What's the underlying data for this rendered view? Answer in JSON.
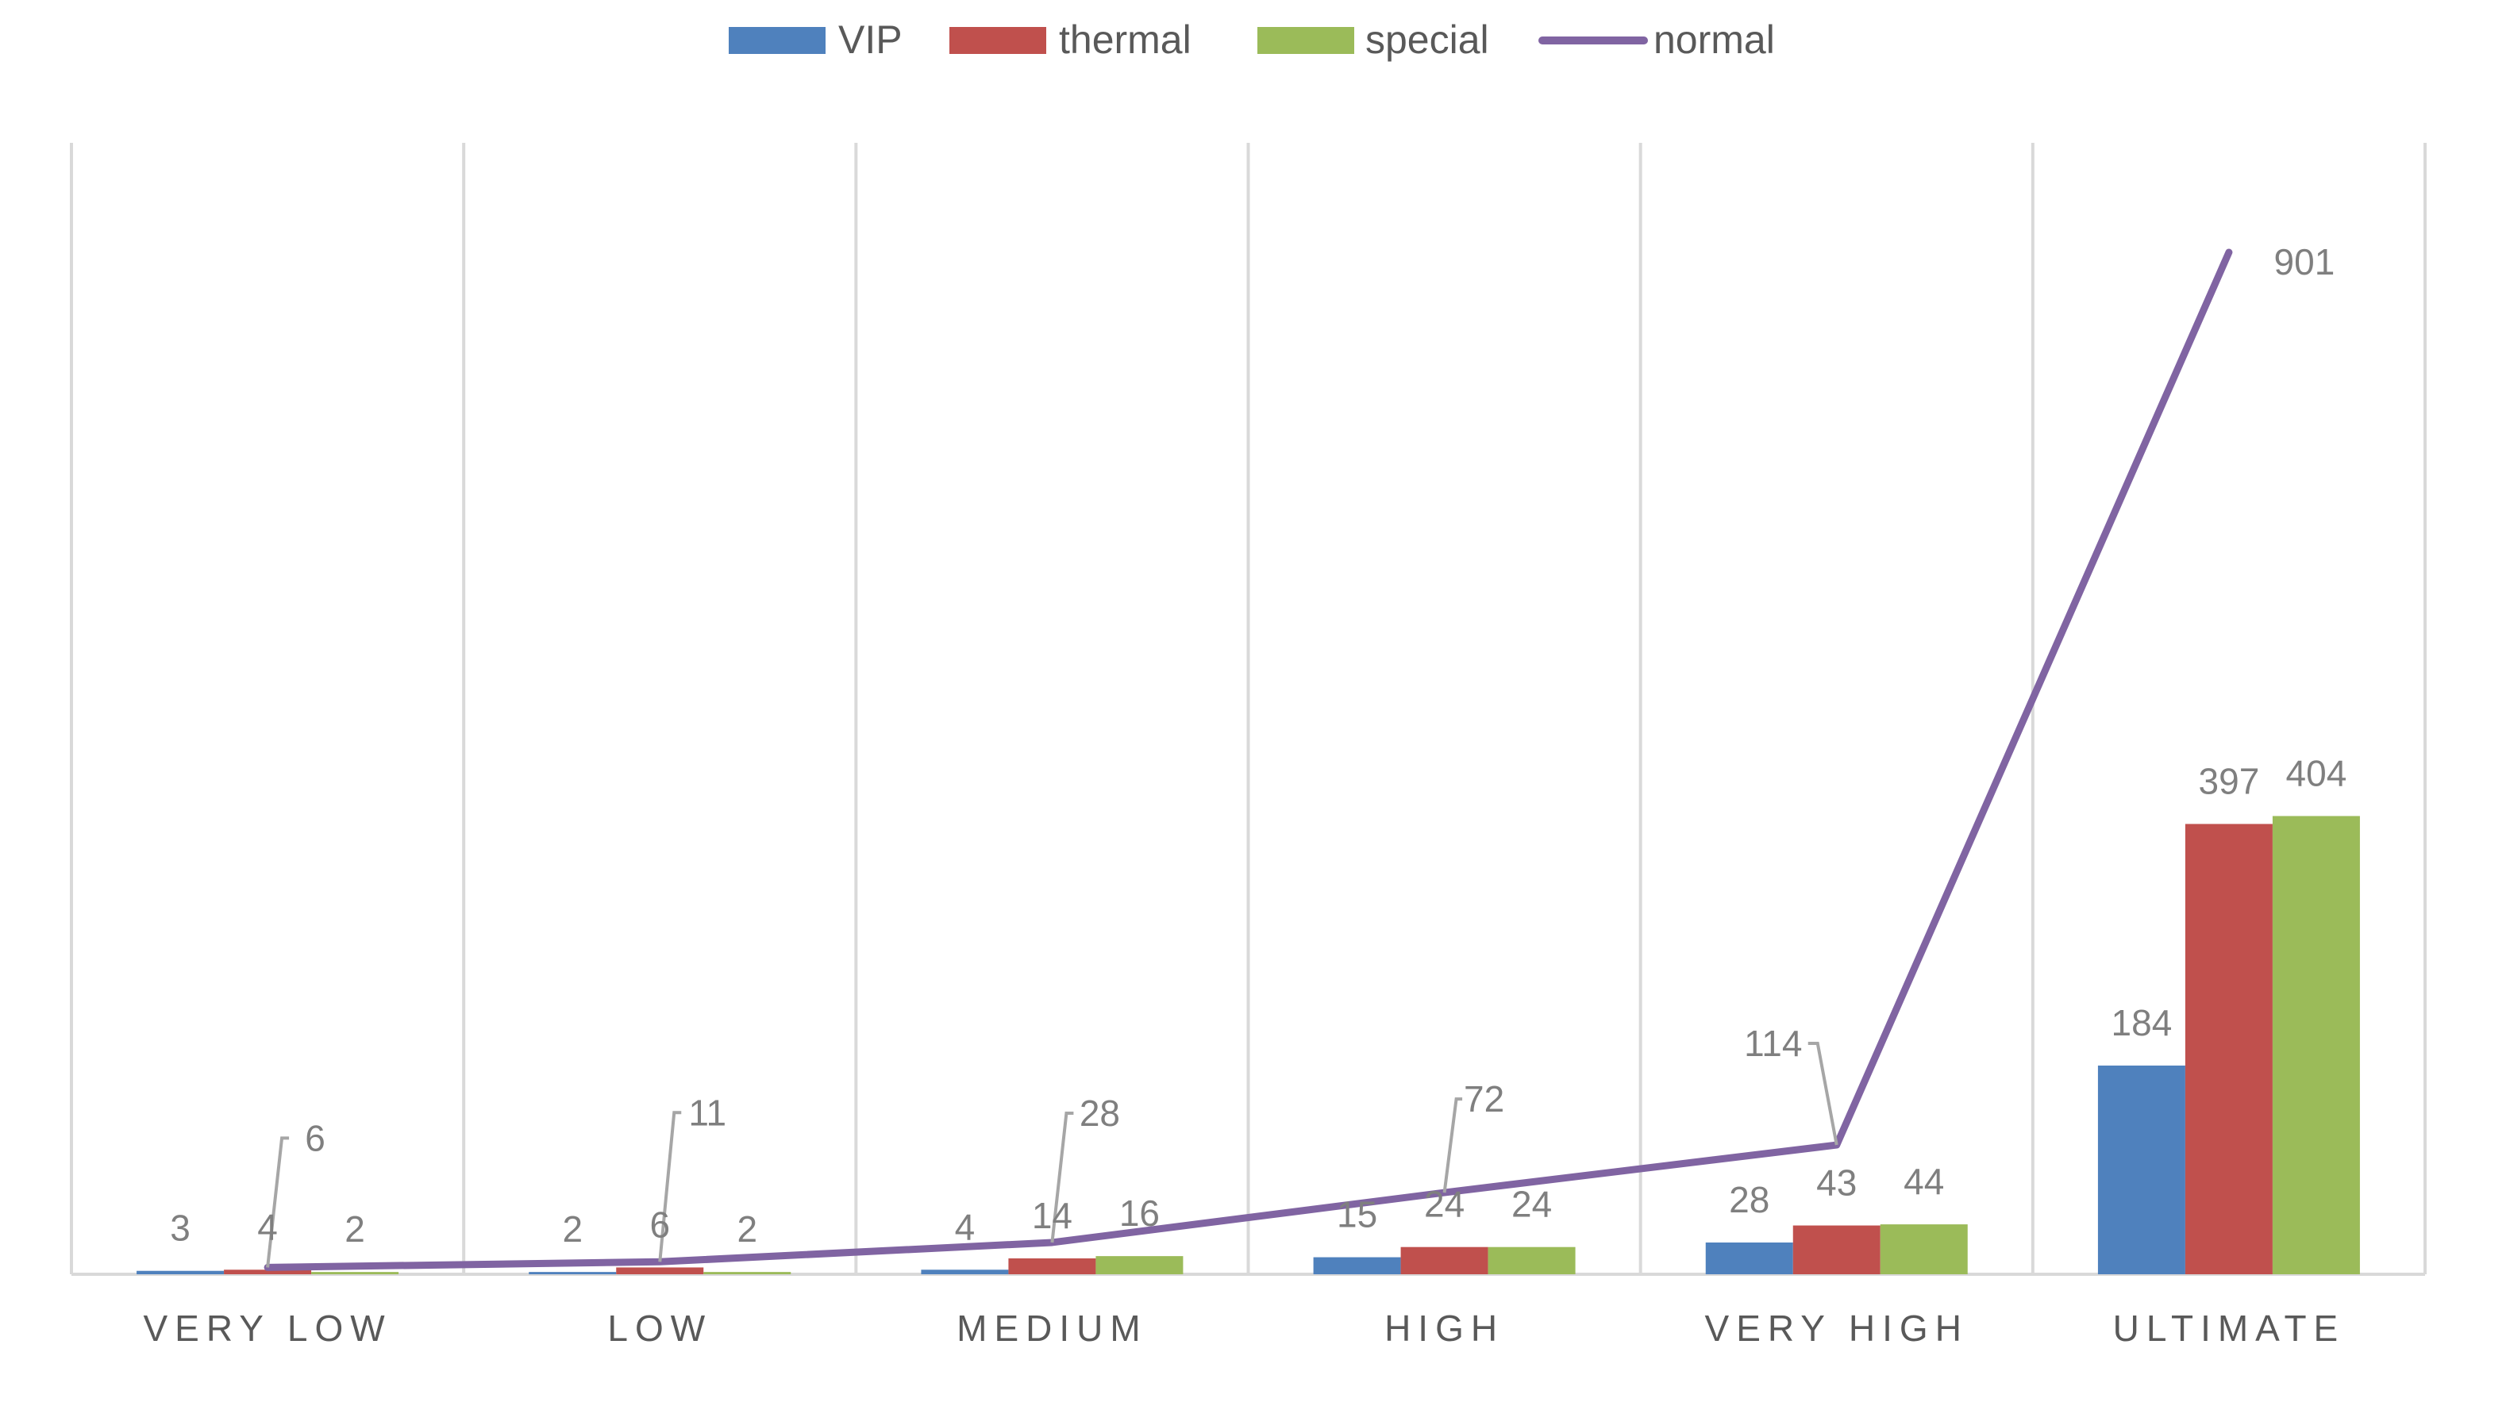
{
  "chart_data": {
    "type": "bar",
    "categories": [
      "VERY LOW",
      "LOW",
      "MEDIUM",
      "HIGH",
      "VERY HIGH",
      "ULTIMATE"
    ],
    "series": [
      {
        "name": "VIP",
        "type": "bar",
        "color": "#4f81bd",
        "values": [
          3,
          2,
          4,
          15,
          28,
          184
        ]
      },
      {
        "name": "thermal",
        "type": "bar",
        "color": "#c0504d",
        "values": [
          4,
          6,
          14,
          24,
          43,
          397
        ]
      },
      {
        "name": "special",
        "type": "bar",
        "color": "#9bbb59",
        "values": [
          2,
          2,
          16,
          24,
          44,
          404
        ]
      },
      {
        "name": "normal",
        "type": "line",
        "color": "#8064a2",
        "values": [
          6,
          11,
          28,
          72,
          114,
          901
        ]
      }
    ],
    "ylim": [
      0,
      1000
    ],
    "grid": "vertical category separators",
    "legend": "top-center",
    "data_labels": true
  }
}
